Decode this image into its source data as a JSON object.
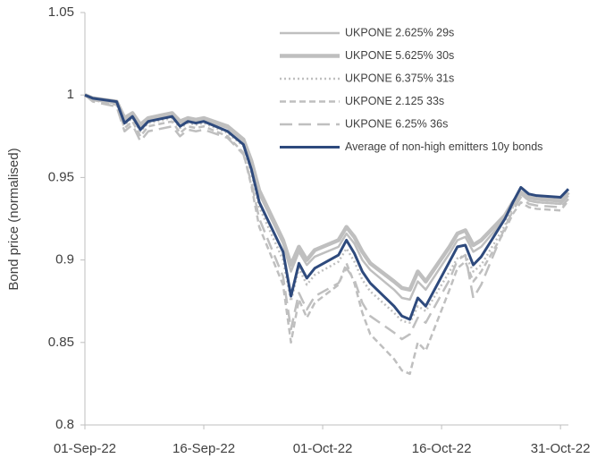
{
  "chart_data": {
    "type": "line",
    "y_label": "Bond price (normalised)",
    "x": [
      "01-Sep-22",
      "02-Sep-22",
      "05-Sep-22",
      "06-Sep-22",
      "07-Sep-22",
      "08-Sep-22",
      "09-Sep-22",
      "12-Sep-22",
      "13-Sep-22",
      "14-Sep-22",
      "15-Sep-22",
      "16-Sep-22",
      "19-Sep-22",
      "20-Sep-22",
      "21-Sep-22",
      "22-Sep-22",
      "23-Sep-22",
      "26-Sep-22",
      "27-Sep-22",
      "28-Sep-22",
      "29-Sep-22",
      "30-Sep-22",
      "03-Oct-22",
      "04-Oct-22",
      "05-Oct-22",
      "06-Oct-22",
      "07-Oct-22",
      "10-Oct-22",
      "11-Oct-22",
      "12-Oct-22",
      "13-Oct-22",
      "14-Oct-22",
      "17-Oct-22",
      "18-Oct-22",
      "19-Oct-22",
      "20-Oct-22",
      "21-Oct-22",
      "24-Oct-22",
      "25-Oct-22",
      "26-Oct-22",
      "27-Oct-22",
      "28-Oct-22",
      "31-Oct-22",
      "01-Nov-22"
    ],
    "series": [
      {
        "name": "UKPONE 2.625% 29s",
        "color": "#bfbfbf",
        "style": "solid",
        "values": [
          1.0,
          0.997,
          0.995,
          0.985,
          0.988,
          0.981,
          0.985,
          0.988,
          0.983,
          0.985,
          0.984,
          0.985,
          0.98,
          0.976,
          0.972,
          0.958,
          0.94,
          0.91,
          0.893,
          0.905,
          0.897,
          0.902,
          0.908,
          0.916,
          0.91,
          0.9,
          0.894,
          0.882,
          0.877,
          0.876,
          0.887,
          0.882,
          0.904,
          0.912,
          0.914,
          0.905,
          0.908,
          0.925,
          0.933,
          0.94,
          0.936,
          0.935,
          0.934,
          0.939
        ]
      },
      {
        "name": "UKPONE 5.625% 30s",
        "color": "#bfbfbf",
        "style": "thick",
        "values": [
          1.0,
          0.998,
          0.996,
          0.986,
          0.989,
          0.982,
          0.986,
          0.989,
          0.984,
          0.986,
          0.985,
          0.986,
          0.981,
          0.977,
          0.973,
          0.96,
          0.942,
          0.912,
          0.897,
          0.908,
          0.9,
          0.906,
          0.912,
          0.92,
          0.914,
          0.905,
          0.898,
          0.887,
          0.883,
          0.882,
          0.893,
          0.887,
          0.908,
          0.916,
          0.918,
          0.909,
          0.912,
          0.927,
          0.935,
          0.941,
          0.938,
          0.937,
          0.936,
          0.941
        ]
      },
      {
        "name": "UKPONE 6.375% 31s",
        "color": "#bfbfbf",
        "style": "dotted",
        "values": [
          1.0,
          0.997,
          0.995,
          0.982,
          0.986,
          0.978,
          0.983,
          0.986,
          0.98,
          0.983,
          0.982,
          0.983,
          0.977,
          0.973,
          0.969,
          0.953,
          0.932,
          0.9,
          0.875,
          0.895,
          0.885,
          0.891,
          0.899,
          0.907,
          0.899,
          0.888,
          0.881,
          0.868,
          0.863,
          0.862,
          0.872,
          0.869,
          0.893,
          0.901,
          0.903,
          0.893,
          0.897,
          0.921,
          0.932,
          0.94,
          0.936,
          0.935,
          0.934,
          0.94
        ]
      },
      {
        "name": "UKPONE 2.125 33s",
        "color": "#bfbfbf",
        "style": "dashed",
        "values": [
          1.0,
          0.997,
          0.994,
          0.98,
          0.984,
          0.975,
          0.981,
          0.984,
          0.977,
          0.981,
          0.98,
          0.981,
          0.975,
          0.97,
          0.965,
          0.945,
          0.92,
          0.885,
          0.85,
          0.876,
          0.865,
          0.874,
          0.885,
          0.898,
          0.886,
          0.868,
          0.855,
          0.84,
          0.833,
          0.831,
          0.85,
          0.845,
          0.882,
          0.895,
          0.899,
          0.887,
          0.893,
          0.918,
          0.928,
          0.935,
          0.932,
          0.931,
          0.93,
          0.936
        ]
      },
      {
        "name": "UKPONE 6.25% 36s",
        "color": "#bfbfbf",
        "style": "long-dashed",
        "values": [
          1.0,
          0.996,
          0.993,
          0.978,
          0.982,
          0.972,
          0.978,
          0.981,
          0.975,
          0.979,
          0.978,
          0.979,
          0.974,
          0.969,
          0.964,
          0.947,
          0.925,
          0.89,
          0.858,
          0.88,
          0.87,
          0.878,
          0.886,
          0.895,
          0.888,
          0.874,
          0.866,
          0.856,
          0.852,
          0.855,
          0.865,
          0.862,
          0.888,
          0.9,
          0.903,
          0.877,
          0.885,
          0.92,
          0.93,
          0.938,
          0.934,
          0.933,
          0.932,
          0.937
        ]
      },
      {
        "name": "Average of non-high emitters 10y bonds",
        "color": "#2e4a7d",
        "style": "bold",
        "values": [
          1.0,
          0.998,
          0.996,
          0.983,
          0.987,
          0.979,
          0.984,
          0.987,
          0.981,
          0.984,
          0.983,
          0.984,
          0.978,
          0.974,
          0.97,
          0.955,
          0.935,
          0.905,
          0.878,
          0.898,
          0.889,
          0.895,
          0.903,
          0.912,
          0.904,
          0.893,
          0.886,
          0.872,
          0.866,
          0.864,
          0.877,
          0.872,
          0.899,
          0.908,
          0.909,
          0.897,
          0.902,
          0.925,
          0.935,
          0.944,
          0.94,
          0.939,
          0.938,
          0.943
        ]
      }
    ],
    "xlim": [
      "01-Sep-22",
      "01-Nov-22"
    ],
    "xticks": [
      "01-Sep-22",
      "16-Sep-22",
      "01-Oct-22",
      "16-Oct-22",
      "31-Oct-22"
    ],
    "ylim": [
      0.8,
      1.05
    ],
    "yticks": [
      0.8,
      0.85,
      0.9,
      0.95,
      1,
      1.05
    ],
    "grid": false,
    "legend": "top-right"
  }
}
